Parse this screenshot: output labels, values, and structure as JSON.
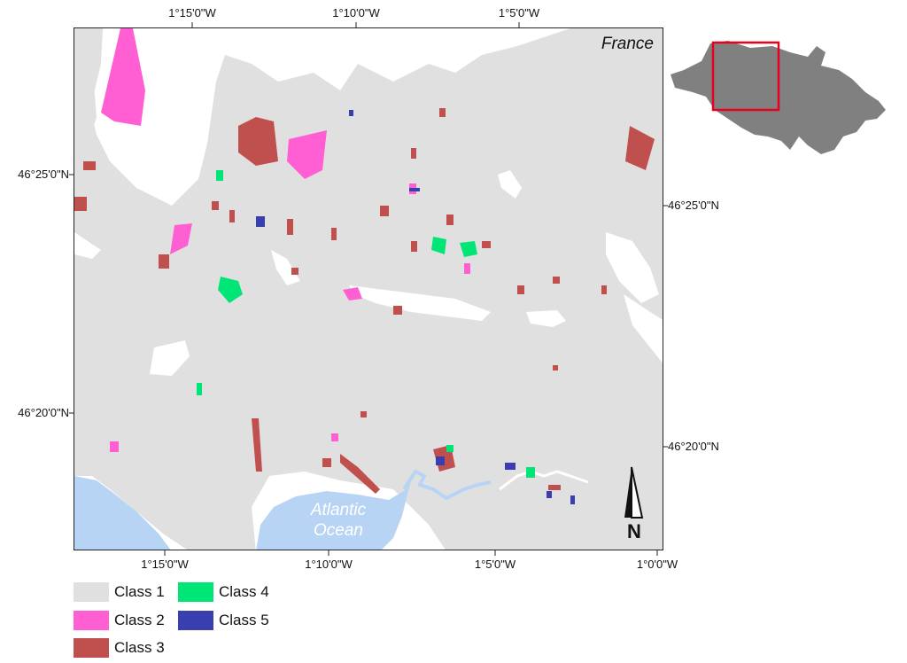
{
  "map": {
    "country_label": "France",
    "water_label_line1": "Atlantic",
    "water_label_line2": "Ocean",
    "north_arrow_label": "N",
    "axis_ticks": {
      "top": [
        "1°15'0\"W",
        "1°10'0\"W",
        "1°5'0\"W"
      ],
      "bottom": [
        "1°15'0\"W",
        "1°10'0\"W",
        "1°5'0\"W",
        "1°0'0\"W"
      ],
      "left": [
        "46°25'0\"N",
        "46°20'0\"N"
      ],
      "right": [
        "46°25'0\"N",
        "46°20'0\"N"
      ]
    },
    "inset": {
      "icon": "locator-inset-map",
      "highlight_color": "#e8001c",
      "shape_color": "#808080"
    }
  },
  "legend": {
    "items": [
      {
        "label": "Class 1",
        "color": "#e0e0e0"
      },
      {
        "label": "Class 2",
        "color": "#ff5fd2"
      },
      {
        "label": "Class 3",
        "color": "#c0504d"
      },
      {
        "label": "Class 4",
        "color": "#00e676"
      },
      {
        "label": "Class 5",
        "color": "#3a3fb0"
      }
    ]
  },
  "colors": {
    "water": "#b8d4f5",
    "background": "#ffffff"
  }
}
